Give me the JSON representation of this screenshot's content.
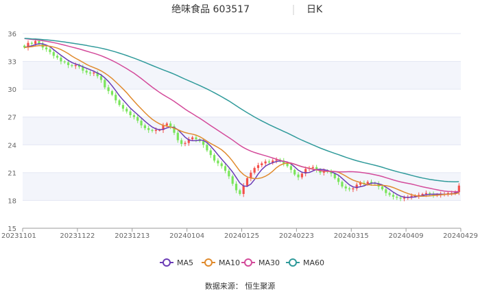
{
  "header": {
    "stock": "绝味食品 603517",
    "period": "日K"
  },
  "source": "数据来源： 恒生聚源",
  "colors": {
    "up": "#f4504a",
    "down": "#79e55a",
    "ma5": "#6a3bb5",
    "ma10": "#e08a2c",
    "ma30": "#d34a9a",
    "ma60": "#2f9a9a",
    "grid": "#e3e6f3",
    "band": "#f3f5fb"
  },
  "chart_data": {
    "type": "candlestick",
    "ylim": [
      15,
      36
    ],
    "yticks": [
      15,
      18,
      21,
      24,
      27,
      30,
      33,
      36
    ],
    "xticks": [
      "20231101",
      "20231122",
      "20231213",
      "20240104",
      "20240125",
      "20240223",
      "20240315",
      "20240409",
      "20240429"
    ],
    "sessions": 120,
    "close": [
      34.5,
      35.0,
      34.9,
      35.2,
      34.9,
      34.5,
      34.3,
      34.0,
      33.6,
      33.4,
      33.0,
      32.9,
      32.6,
      32.5,
      32.6,
      32.4,
      32.0,
      31.8,
      31.7,
      31.8,
      31.4,
      31.0,
      30.2,
      29.8,
      29.4,
      28.8,
      28.3,
      27.9,
      27.6,
      27.2,
      27.0,
      26.6,
      26.1,
      25.8,
      25.6,
      25.5,
      25.6,
      25.6,
      26.1,
      26.3,
      26.0,
      25.3,
      24.5,
      24.1,
      24.2,
      24.6,
      24.8,
      24.6,
      24.4,
      24.0,
      23.4,
      22.9,
      22.3,
      22.0,
      21.7,
      21.2,
      20.6,
      19.8,
      19.1,
      18.7,
      19.6,
      20.4,
      21.0,
      21.5,
      21.8,
      22.0,
      22.2,
      22.1,
      22.3,
      22.4,
      22.3,
      22.0,
      21.7,
      21.3,
      20.8,
      20.5,
      20.9,
      21.4,
      21.5,
      21.6,
      21.3,
      21.0,
      21.2,
      21.1,
      20.9,
      20.4,
      20.0,
      19.5,
      19.3,
      19.2,
      19.3,
      19.7,
      19.9,
      19.8,
      20.0,
      19.9,
      19.8,
      19.5,
      19.2,
      18.8,
      18.6,
      18.4,
      18.3,
      18.2,
      18.3,
      18.4,
      18.5,
      18.5,
      18.6,
      18.7,
      18.8,
      18.7,
      18.6,
      18.6,
      18.7,
      18.7,
      18.8,
      18.8,
      18.9,
      19.6
    ],
    "ma_lengths": [
      5,
      10,
      30,
      60
    ],
    "legend": [
      "MA5",
      "MA10",
      "MA30",
      "MA60"
    ]
  }
}
